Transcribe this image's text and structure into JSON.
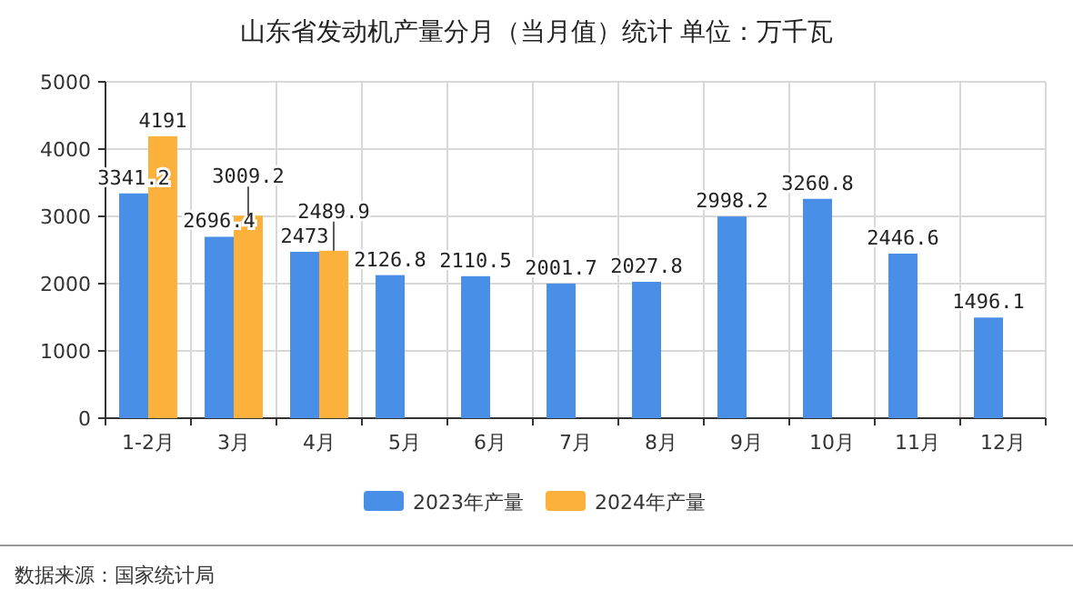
{
  "chart_data": {
    "type": "bar",
    "title": "山东省发动机产量分月（当月值）统计  单位：万千瓦",
    "categories": [
      "1-2月",
      "3月",
      "4月",
      "5月",
      "6月",
      "7月",
      "8月",
      "9月",
      "10月",
      "11月",
      "12月"
    ],
    "series": [
      {
        "name": "2023年产量",
        "color": "#4a8fe7",
        "values": [
          3341.2,
          2696.4,
          2473,
          2126.8,
          2110.5,
          2001.7,
          2027.8,
          2998.2,
          3260.8,
          2446.6,
          1496.1
        ]
      },
      {
        "name": "2024年产量",
        "color": "#fbb13c",
        "values": [
          4191,
          3009.2,
          2489.9,
          null,
          null,
          null,
          null,
          null,
          null,
          null,
          null
        ]
      }
    ],
    "ylim": [
      0,
      5000
    ],
    "yticks": [
      0,
      1000,
      2000,
      3000,
      4000,
      5000
    ],
    "grid": true,
    "legend": "bottom",
    "data_labels": true,
    "annotations": [
      "数据来源：国家统计局"
    ]
  }
}
